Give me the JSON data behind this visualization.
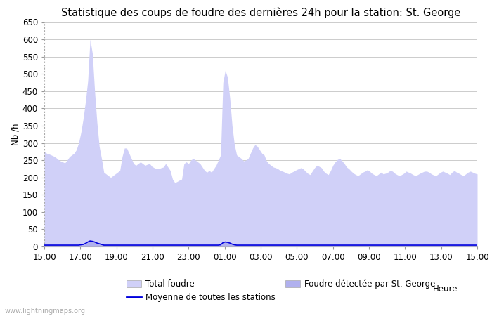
{
  "title": "Statistique des coups de foudre des dernières 24h pour la station: St. George",
  "xlabel": "Heure",
  "ylabel": "Nb /h",
  "xlim_labels": [
    "15:00",
    "17:00",
    "19:00",
    "21:00",
    "23:00",
    "01:00",
    "03:00",
    "05:00",
    "07:00",
    "09:00",
    "11:00",
    "13:00",
    "15:00"
  ],
  "ylim": [
    0,
    650
  ],
  "yticks": [
    0,
    50,
    100,
    150,
    200,
    250,
    300,
    350,
    400,
    450,
    500,
    550,
    600,
    650
  ],
  "bg_color": "#ffffff",
  "grid_color": "#cccccc",
  "fill_total_color": "#d0d0f8",
  "fill_station_color": "#b0b0ee",
  "line_avg_color": "#0000dd",
  "watermark": "www.lightningmaps.org",
  "total_foudre": [
    275,
    270,
    268,
    265,
    262,
    258,
    252,
    248,
    245,
    242,
    250,
    260,
    265,
    270,
    280,
    300,
    330,
    370,
    420,
    480,
    600,
    560,
    450,
    360,
    290,
    255,
    215,
    210,
    205,
    200,
    205,
    210,
    215,
    220,
    260,
    285,
    285,
    270,
    255,
    240,
    235,
    240,
    245,
    240,
    235,
    238,
    240,
    232,
    228,
    225,
    225,
    228,
    230,
    240,
    230,
    220,
    195,
    185,
    188,
    192,
    195,
    240,
    245,
    240,
    250,
    255,
    250,
    245,
    240,
    230,
    220,
    215,
    220,
    215,
    225,
    235,
    250,
    265,
    475,
    510,
    490,
    430,
    350,
    295,
    265,
    260,
    255,
    248,
    250,
    255,
    270,
    285,
    295,
    290,
    280,
    270,
    265,
    248,
    240,
    235,
    230,
    228,
    225,
    220,
    218,
    215,
    212,
    210,
    215,
    218,
    222,
    225,
    228,
    225,
    218,
    212,
    208,
    218,
    228,
    235,
    232,
    228,
    218,
    212,
    208,
    220,
    235,
    245,
    252,
    255,
    248,
    240,
    230,
    225,
    218,
    212,
    208,
    205,
    210,
    215,
    218,
    222,
    218,
    212,
    208,
    205,
    210,
    215,
    210,
    212,
    215,
    220,
    218,
    212,
    208,
    205,
    208,
    212,
    218,
    215,
    212,
    208,
    205,
    208,
    212,
    215,
    218,
    218,
    215,
    210,
    207,
    205,
    210,
    215,
    218,
    215,
    212,
    208,
    215,
    220,
    215,
    212,
    208,
    205,
    210,
    215,
    218,
    215,
    212,
    210
  ],
  "station_foudre": [
    5,
    5,
    5,
    4,
    4,
    4,
    3,
    3,
    3,
    3,
    3,
    3,
    3,
    3,
    3,
    3,
    4,
    5,
    8,
    12,
    15,
    14,
    12,
    10,
    8,
    6,
    4,
    3,
    3,
    3,
    3,
    3,
    3,
    3,
    3,
    3,
    3,
    3,
    3,
    3,
    3,
    3,
    3,
    3,
    3,
    3,
    3,
    3,
    3,
    3,
    3,
    3,
    3,
    3,
    3,
    3,
    3,
    3,
    3,
    3,
    3,
    3,
    3,
    3,
    3,
    3,
    3,
    3,
    3,
    3,
    3,
    3,
    3,
    3,
    3,
    3,
    3,
    4,
    10,
    12,
    11,
    9,
    7,
    5,
    4,
    3,
    3,
    3,
    3,
    3,
    3,
    3,
    3,
    3,
    3,
    3,
    3,
    3,
    3,
    3,
    3,
    3,
    3,
    3,
    3,
    3,
    3,
    3,
    3,
    3,
    3,
    3,
    3,
    3,
    3,
    3,
    3,
    3,
    3,
    3,
    3,
    3,
    3,
    3,
    3,
    3,
    3,
    3,
    3,
    3,
    3,
    3,
    3,
    3,
    3,
    3,
    3,
    3,
    3,
    3,
    3,
    3,
    3,
    3,
    3,
    3,
    3,
    3,
    3,
    3,
    3,
    3,
    3,
    3,
    3,
    3,
    3,
    3,
    3,
    3,
    3,
    3,
    3,
    3,
    3,
    3,
    3,
    3,
    3,
    3,
    3,
    3,
    3,
    3,
    3,
    3,
    3,
    3,
    3,
    3,
    3,
    3,
    3,
    3,
    3,
    3,
    3,
    3,
    3,
    3
  ],
  "avg_line": [
    4,
    4,
    4,
    4,
    4,
    4,
    4,
    4,
    4,
    4,
    4,
    4,
    4,
    4,
    4,
    4,
    5,
    6,
    9,
    13,
    16,
    15,
    13,
    10,
    8,
    6,
    4,
    4,
    4,
    4,
    4,
    4,
    4,
    4,
    4,
    4,
    4,
    4,
    4,
    4,
    4,
    4,
    4,
    4,
    4,
    4,
    4,
    4,
    4,
    4,
    4,
    4,
    4,
    4,
    4,
    4,
    4,
    4,
    4,
    4,
    4,
    4,
    4,
    4,
    4,
    4,
    4,
    4,
    4,
    4,
    4,
    4,
    4,
    4,
    4,
    4,
    4,
    5,
    11,
    13,
    12,
    10,
    7,
    5,
    4,
    4,
    4,
    4,
    4,
    4,
    4,
    4,
    4,
    4,
    4,
    4,
    4,
    4,
    4,
    4,
    4,
    4,
    4,
    4,
    4,
    4,
    4,
    4,
    4,
    4,
    4,
    4,
    4,
    4,
    4,
    4,
    4,
    4,
    4,
    4,
    4,
    4,
    4,
    4,
    4,
    4,
    4,
    4,
    4,
    4,
    4,
    4,
    4,
    4,
    4,
    4,
    4,
    4,
    4,
    4,
    4,
    4,
    4,
    4,
    4,
    4,
    4,
    4,
    4,
    4,
    4,
    4,
    4,
    4,
    4,
    4,
    4,
    4,
    4,
    4,
    4,
    4,
    4,
    4,
    4,
    4,
    4,
    4,
    4,
    4,
    4,
    4,
    4,
    4,
    4,
    4,
    4,
    4,
    4,
    4,
    4,
    4,
    4,
    4,
    4,
    4,
    4,
    4,
    4,
    4
  ],
  "title_fontsize": 10.5,
  "tick_fontsize": 8.5,
  "label_fontsize": 8.5
}
